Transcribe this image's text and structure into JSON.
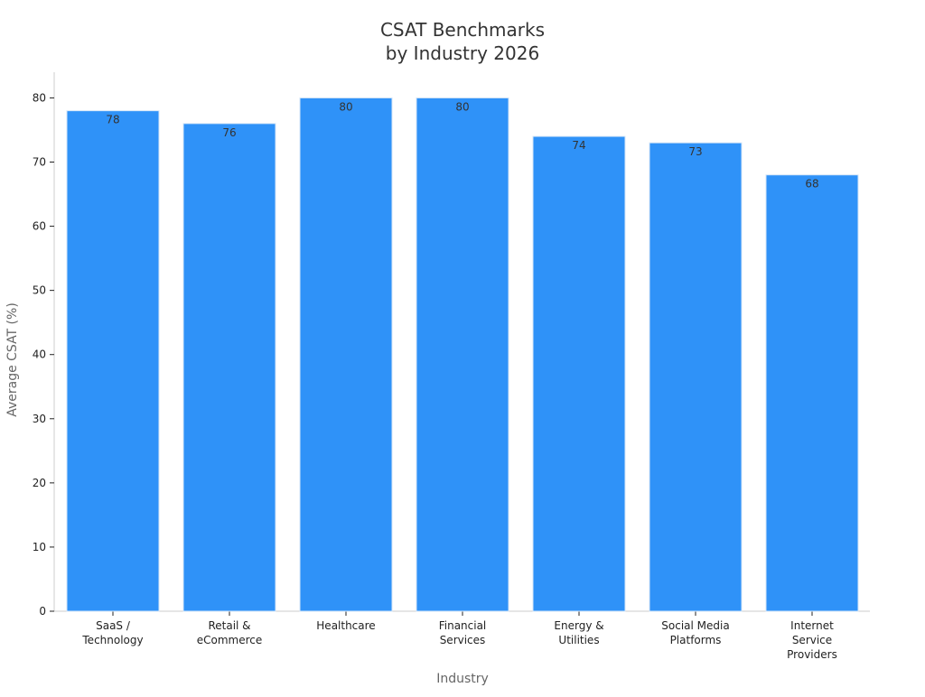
{
  "chart_data": {
    "type": "bar",
    "title": "CSAT Benchmarks\nby Industry 2026",
    "xlabel": "Industry",
    "ylabel": "Average CSAT (%)",
    "categories": [
      "SaaS /\nTechnology",
      "Retail &\neCommerce",
      "Healthcare",
      "Financial\nServices",
      "Energy &\nUtilities",
      "Social Media\nPlatforms",
      "Internet\nService\nProviders"
    ],
    "values": [
      78,
      76,
      80,
      80,
      74,
      73,
      68
    ],
    "ylim": [
      0,
      84
    ],
    "yticks": [
      0,
      10,
      20,
      30,
      40,
      50,
      60,
      70,
      80
    ],
    "grid": false,
    "legend": "none",
    "colors": {
      "bar": "#2f92f8",
      "bar_edge": "#d6e6f7",
      "axis": "#cccccc",
      "tick": "#222222",
      "title": "#333333",
      "axis_title": "#666666"
    }
  }
}
